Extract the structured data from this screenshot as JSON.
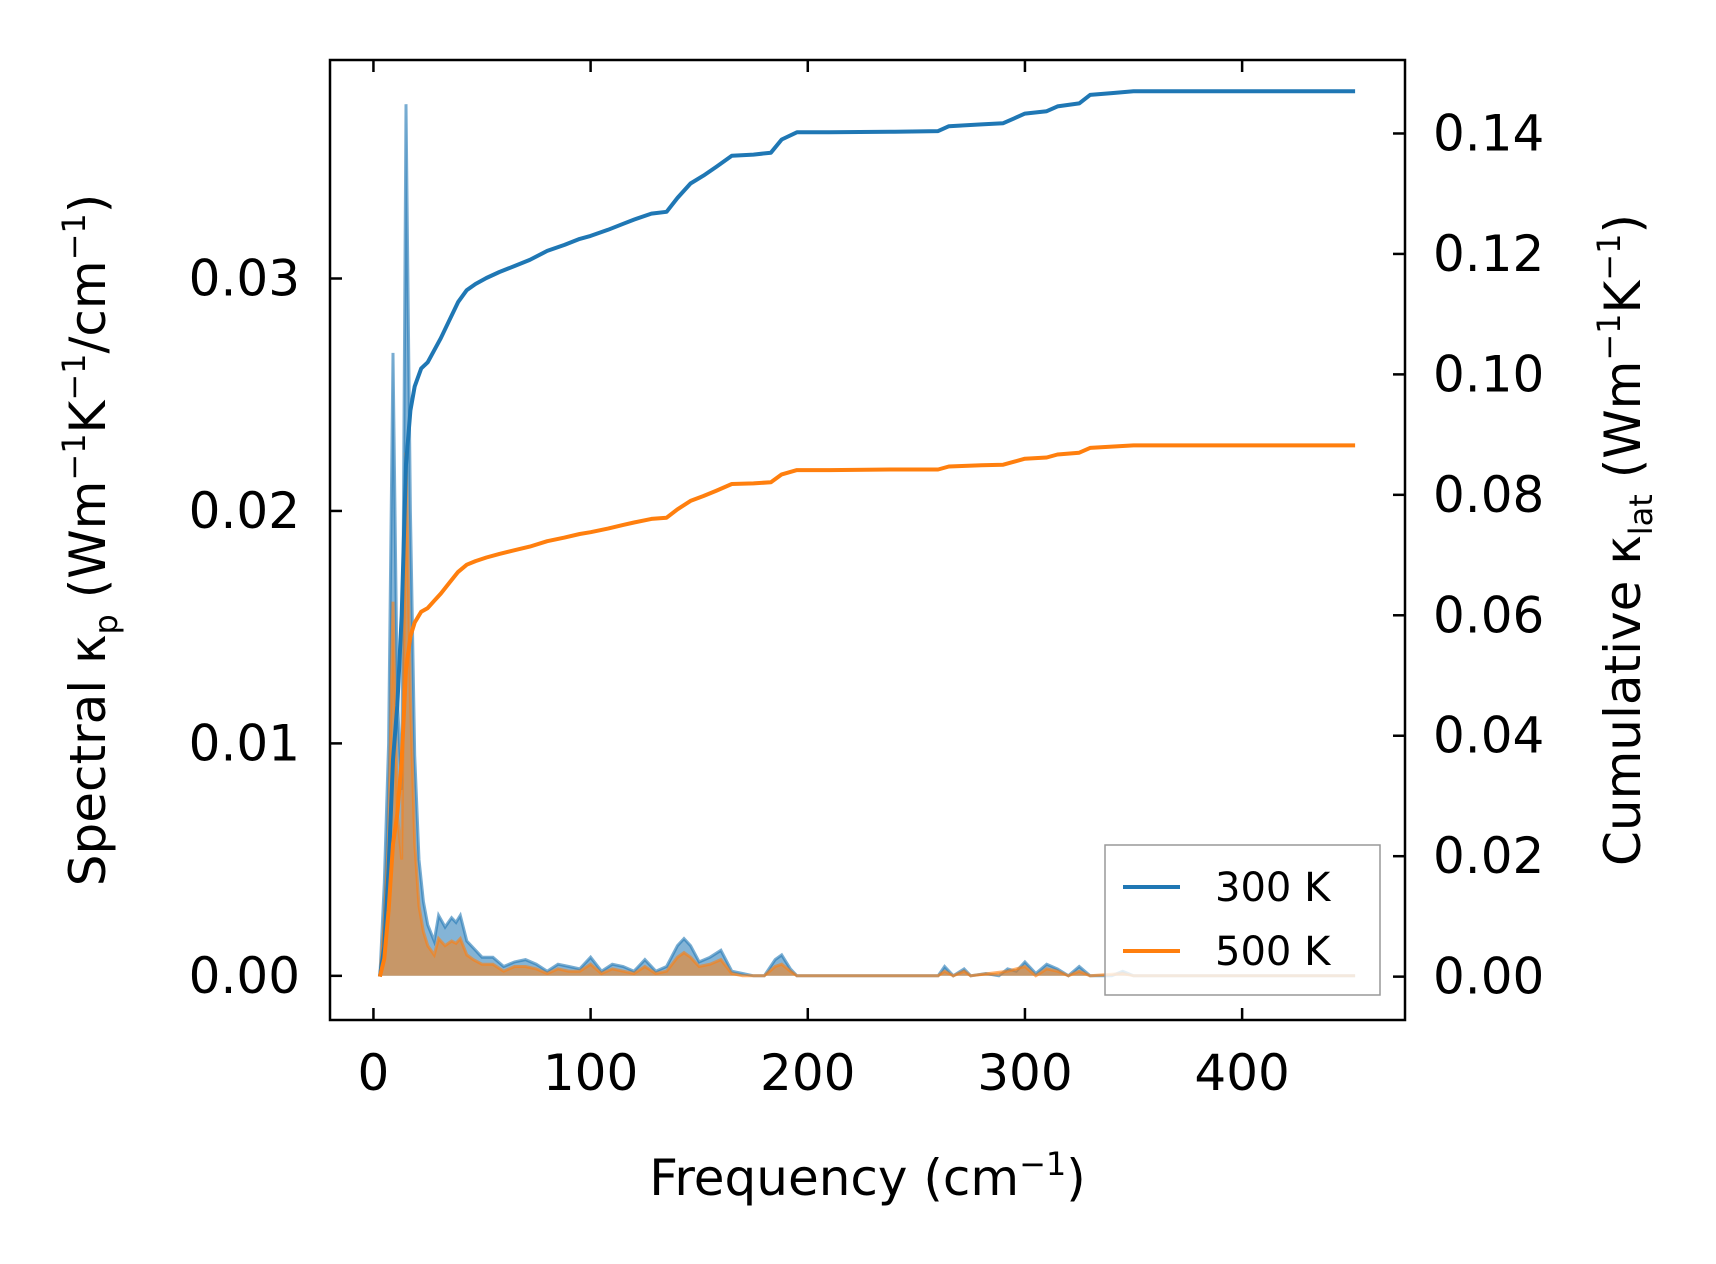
{
  "chart_data": {
    "type": "area",
    "title": "",
    "xlabel": {
      "text": "Frequency (cm",
      "sup": "−1",
      "tail": ")"
    },
    "ylabel_left": {
      "parts": [
        {
          "t": "Spectral κ"
        },
        {
          "sub": "p"
        },
        {
          "t": " (Wm"
        },
        {
          "sup": "−1"
        },
        {
          "t": "K"
        },
        {
          "sup": "−1"
        },
        {
          "t": "/cm"
        },
        {
          "sup": "−1"
        },
        {
          "t": ")"
        }
      ]
    },
    "ylabel_right": {
      "parts": [
        {
          "t": "Cumulative κ"
        },
        {
          "sub": "lat"
        },
        {
          "t": " (Wm"
        },
        {
          "sup": "−1"
        },
        {
          "t": "K"
        },
        {
          "sup": "−1"
        },
        {
          "t": ")"
        }
      ]
    },
    "xlim": [
      -20,
      475
    ],
    "ylim_left": [
      -0.0019,
      0.0394
    ],
    "ylim_right": [
      -0.0072,
      0.1522
    ],
    "x_ticks": [
      0,
      100,
      200,
      300,
      400
    ],
    "x_tick_labels": [
      "0",
      "100",
      "200",
      "300",
      "400"
    ],
    "y_left_ticks": [
      0.0,
      0.01,
      0.02,
      0.03
    ],
    "y_left_tick_labels": [
      "0.00",
      "0.01",
      "0.02",
      "0.03"
    ],
    "y_right_ticks": [
      0.0,
      0.02,
      0.04,
      0.06,
      0.08,
      0.1,
      0.12,
      0.14
    ],
    "y_right_tick_labels": [
      "0.00",
      "0.02",
      "0.04",
      "0.06",
      "0.08",
      "0.10",
      "0.12",
      "0.14"
    ],
    "grid": false,
    "legend_placement": "lower-right",
    "series": [
      {
        "name": "300 K",
        "color": "#1f77b4",
        "spectral": [
          [
            3,
            0.0
          ],
          [
            5,
            0.004
          ],
          [
            7,
            0.01
          ],
          [
            9,
            0.0268
          ],
          [
            11,
            0.012
          ],
          [
            13,
            0.008
          ],
          [
            15,
            0.0375
          ],
          [
            17,
            0.02
          ],
          [
            19,
            0.0095
          ],
          [
            21,
            0.005
          ],
          [
            23,
            0.0032
          ],
          [
            25,
            0.0022
          ],
          [
            28,
            0.0015
          ],
          [
            30,
            0.0026
          ],
          [
            33,
            0.0021
          ],
          [
            36,
            0.0025
          ],
          [
            38,
            0.0023
          ],
          [
            40,
            0.0026
          ],
          [
            43,
            0.0015
          ],
          [
            46,
            0.0012
          ],
          [
            50,
            0.0008
          ],
          [
            55,
            0.0008
          ],
          [
            60,
            0.0004
          ],
          [
            65,
            0.0006
          ],
          [
            70,
            0.0007
          ],
          [
            75,
            0.0005
          ],
          [
            80,
            0.0002
          ],
          [
            85,
            0.0005
          ],
          [
            90,
            0.0004
          ],
          [
            95,
            0.0003
          ],
          [
            100,
            0.0008
          ],
          [
            105,
            0.0002
          ],
          [
            110,
            0.0005
          ],
          [
            115,
            0.0004
          ],
          [
            120,
            0.0002
          ],
          [
            125,
            0.0007
          ],
          [
            130,
            0.0002
          ],
          [
            135,
            0.0004
          ],
          [
            140,
            0.0013
          ],
          [
            143,
            0.0016
          ],
          [
            146,
            0.0013
          ],
          [
            150,
            0.0006
          ],
          [
            155,
            0.0008
          ],
          [
            160,
            0.0011
          ],
          [
            165,
            0.0002
          ],
          [
            170,
            0.0001
          ],
          [
            175,
            0.0
          ],
          [
            180,
            0.0
          ],
          [
            185,
            0.0007
          ],
          [
            188,
            0.0009
          ],
          [
            192,
            0.0003
          ],
          [
            195,
            0.0
          ],
          [
            200,
            0.0
          ],
          [
            220,
            0.0
          ],
          [
            240,
            0.0
          ],
          [
            255,
            0.0
          ],
          [
            260,
            0.0
          ],
          [
            263,
            0.0004
          ],
          [
            267,
            0.0
          ],
          [
            272,
            0.0003
          ],
          [
            275,
            0.0
          ],
          [
            282,
            0.0001
          ],
          [
            288,
            0.0
          ],
          [
            292,
            0.0003
          ],
          [
            296,
            0.0002
          ],
          [
            300,
            0.0006
          ],
          [
            305,
            0.0001
          ],
          [
            310,
            0.0005
          ],
          [
            315,
            0.0003
          ],
          [
            320,
            0.0
          ],
          [
            325,
            0.0004
          ],
          [
            330,
            0.0
          ],
          [
            340,
            0.0
          ],
          [
            345,
            0.0002
          ],
          [
            350,
            0.0
          ],
          [
            380,
            0.0
          ],
          [
            420,
            0.0
          ],
          [
            452,
            0.0
          ]
        ],
        "cumulative": [
          [
            3,
            0.0
          ],
          [
            5,
            0.005
          ],
          [
            7,
            0.018
          ],
          [
            9,
            0.036
          ],
          [
            11,
            0.045
          ],
          [
            13,
            0.06
          ],
          [
            15,
            0.085
          ],
          [
            17,
            0.094
          ],
          [
            19,
            0.098
          ],
          [
            22,
            0.101
          ],
          [
            25,
            0.102
          ],
          [
            28,
            0.104
          ],
          [
            31,
            0.106
          ],
          [
            35,
            0.109
          ],
          [
            39,
            0.112
          ],
          [
            43,
            0.114
          ],
          [
            47,
            0.115
          ],
          [
            52,
            0.116
          ],
          [
            58,
            0.117
          ],
          [
            65,
            0.118
          ],
          [
            72,
            0.119
          ],
          [
            80,
            0.1205
          ],
          [
            88,
            0.1215
          ],
          [
            95,
            0.1225
          ],
          [
            100,
            0.123
          ],
          [
            108,
            0.124
          ],
          [
            115,
            0.125
          ],
          [
            120,
            0.1257
          ],
          [
            128,
            0.1267
          ],
          [
            135,
            0.127
          ],
          [
            140,
            0.1293
          ],
          [
            146,
            0.1317
          ],
          [
            152,
            0.133
          ],
          [
            158,
            0.1345
          ],
          [
            165,
            0.1363
          ],
          [
            175,
            0.1365
          ],
          [
            183,
            0.1368
          ],
          [
            188,
            0.139
          ],
          [
            195,
            0.1402
          ],
          [
            210,
            0.1402
          ],
          [
            240,
            0.1403
          ],
          [
            260,
            0.1404
          ],
          [
            265,
            0.1412
          ],
          [
            280,
            0.1415
          ],
          [
            290,
            0.1417
          ],
          [
            295,
            0.1425
          ],
          [
            300,
            0.1433
          ],
          [
            310,
            0.1437
          ],
          [
            315,
            0.1445
          ],
          [
            325,
            0.145
          ],
          [
            330,
            0.1464
          ],
          [
            340,
            0.1467
          ],
          [
            350,
            0.147
          ],
          [
            370,
            0.147
          ],
          [
            400,
            0.147
          ],
          [
            430,
            0.147
          ],
          [
            452,
            0.147
          ]
        ]
      },
      {
        "name": "500 K",
        "color": "#ff7f0e",
        "spectral": [
          [
            3,
            0.0
          ],
          [
            5,
            0.0023
          ],
          [
            7,
            0.006
          ],
          [
            9,
            0.0161
          ],
          [
            11,
            0.007
          ],
          [
            13,
            0.005
          ],
          [
            15,
            0.0225
          ],
          [
            17,
            0.012
          ],
          [
            19,
            0.0057
          ],
          [
            21,
            0.003
          ],
          [
            23,
            0.0019
          ],
          [
            25,
            0.0013
          ],
          [
            28,
            0.0009
          ],
          [
            30,
            0.0016
          ],
          [
            33,
            0.0013
          ],
          [
            36,
            0.0015
          ],
          [
            38,
            0.0014
          ],
          [
            40,
            0.0016
          ],
          [
            43,
            0.0009
          ],
          [
            46,
            0.0007
          ],
          [
            50,
            0.0005
          ],
          [
            55,
            0.0005
          ],
          [
            60,
            0.0002
          ],
          [
            65,
            0.0004
          ],
          [
            70,
            0.0004
          ],
          [
            75,
            0.0003
          ],
          [
            80,
            0.0001
          ],
          [
            85,
            0.0003
          ],
          [
            90,
            0.0002
          ],
          [
            95,
            0.0002
          ],
          [
            100,
            0.0005
          ],
          [
            105,
            0.0001
          ],
          [
            110,
            0.0003
          ],
          [
            115,
            0.0002
          ],
          [
            120,
            0.0001
          ],
          [
            125,
            0.0004
          ],
          [
            130,
            0.0001
          ],
          [
            135,
            0.0002
          ],
          [
            140,
            0.0008
          ],
          [
            143,
            0.001
          ],
          [
            146,
            0.0008
          ],
          [
            150,
            0.0004
          ],
          [
            155,
            0.0005
          ],
          [
            160,
            0.0007
          ],
          [
            165,
            0.0001
          ],
          [
            170,
            0.0
          ],
          [
            180,
            0.0
          ],
          [
            185,
            0.0004
          ],
          [
            188,
            0.0005
          ],
          [
            192,
            0.0002
          ],
          [
            195,
            0.0
          ],
          [
            220,
            0.0
          ],
          [
            260,
            0.0
          ],
          [
            263,
            0.0002
          ],
          [
            267,
            0.0
          ],
          [
            272,
            0.0002
          ],
          [
            275,
            0.0
          ],
          [
            292,
            0.0002
          ],
          [
            300,
            0.0004
          ],
          [
            305,
            0.0
          ],
          [
            310,
            0.0003
          ],
          [
            315,
            0.0002
          ],
          [
            320,
            0.0
          ],
          [
            325,
            0.0002
          ],
          [
            330,
            0.0
          ],
          [
            345,
            0.0001
          ],
          [
            350,
            0.0
          ],
          [
            400,
            0.0
          ],
          [
            452,
            0.0
          ]
        ],
        "cumulative": [
          [
            3,
            0.0
          ],
          [
            5,
            0.003
          ],
          [
            7,
            0.011
          ],
          [
            9,
            0.022
          ],
          [
            11,
            0.027
          ],
          [
            13,
            0.036
          ],
          [
            15,
            0.051
          ],
          [
            17,
            0.0565
          ],
          [
            19,
            0.0588
          ],
          [
            22,
            0.0606
          ],
          [
            25,
            0.0612
          ],
          [
            28,
            0.0624
          ],
          [
            31,
            0.0636
          ],
          [
            35,
            0.0654
          ],
          [
            39,
            0.0672
          ],
          [
            43,
            0.0684
          ],
          [
            47,
            0.069
          ],
          [
            52,
            0.0696
          ],
          [
            58,
            0.0702
          ],
          [
            65,
            0.0708
          ],
          [
            72,
            0.0714
          ],
          [
            80,
            0.0723
          ],
          [
            88,
            0.0729
          ],
          [
            95,
            0.0735
          ],
          [
            100,
            0.0738
          ],
          [
            108,
            0.0744
          ],
          [
            115,
            0.075
          ],
          [
            120,
            0.0754
          ],
          [
            128,
            0.076
          ],
          [
            135,
            0.0762
          ],
          [
            140,
            0.0776
          ],
          [
            146,
            0.079
          ],
          [
            152,
            0.0798
          ],
          [
            158,
            0.0807
          ],
          [
            165,
            0.0818
          ],
          [
            175,
            0.0819
          ],
          [
            183,
            0.0821
          ],
          [
            188,
            0.0834
          ],
          [
            195,
            0.0841
          ],
          [
            210,
            0.0841
          ],
          [
            240,
            0.0842
          ],
          [
            260,
            0.0842
          ],
          [
            265,
            0.0847
          ],
          [
            280,
            0.0849
          ],
          [
            290,
            0.085
          ],
          [
            295,
            0.0855
          ],
          [
            300,
            0.086
          ],
          [
            310,
            0.0862
          ],
          [
            315,
            0.0867
          ],
          [
            325,
            0.087
          ],
          [
            330,
            0.0878
          ],
          [
            340,
            0.088
          ],
          [
            350,
            0.0882
          ],
          [
            370,
            0.0882
          ],
          [
            400,
            0.0882
          ],
          [
            430,
            0.0882
          ],
          [
            452,
            0.0882
          ]
        ]
      }
    ]
  }
}
